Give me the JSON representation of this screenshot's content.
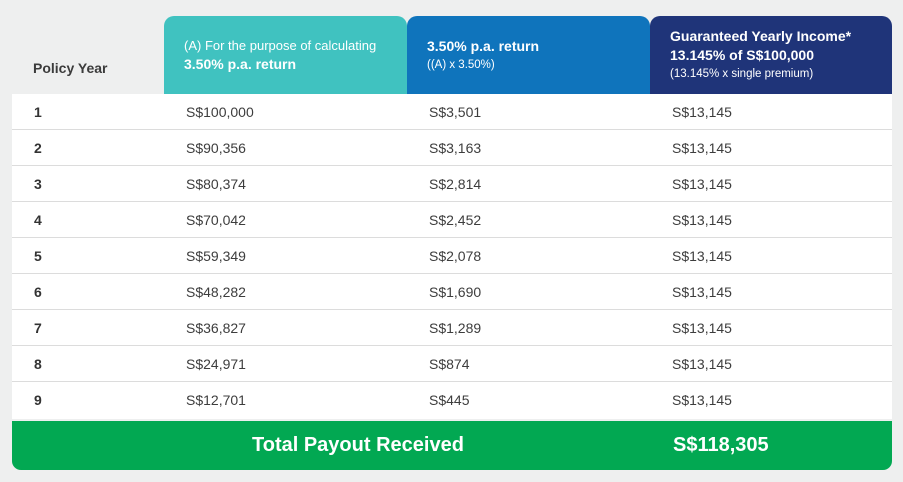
{
  "header": {
    "policy_year_label": "Policy Year",
    "col_a": {
      "line1": "(A) For the purpose of calculating",
      "line2": "3.50% p.a. return"
    },
    "col_b": {
      "line1": "3.50% p.a. return",
      "line2": "((A) x 3.50%)"
    },
    "col_c": {
      "line1": "Guaranteed Yearly Income*",
      "line2": "13.145% of S$100,000",
      "line3": "(13.145% x single premium)"
    }
  },
  "rows": [
    {
      "year": "1",
      "a": "S$100,000",
      "b": "S$3,501",
      "c": "S$13,145"
    },
    {
      "year": "2",
      "a": "S$90,356",
      "b": "S$3,163",
      "c": "S$13,145"
    },
    {
      "year": "3",
      "a": "S$80,374",
      "b": "S$2,814",
      "c": "S$13,145"
    },
    {
      "year": "4",
      "a": "S$70,042",
      "b": "S$2,452",
      "c": "S$13,145"
    },
    {
      "year": "5",
      "a": "S$59,349",
      "b": "S$2,078",
      "c": "S$13,145"
    },
    {
      "year": "6",
      "a": "S$48,282",
      "b": "S$1,690",
      "c": "S$13,145"
    },
    {
      "year": "7",
      "a": "S$36,827",
      "b": "S$1,289",
      "c": "S$13,145"
    },
    {
      "year": "8",
      "a": "S$24,971",
      "b": "S$874",
      "c": "S$13,145"
    },
    {
      "year": "9",
      "a": "S$12,701",
      "b": "S$445",
      "c": "S$13,145"
    }
  ],
  "total": {
    "label": "Total Payout Received",
    "value": "S$118,305"
  },
  "colors": {
    "col_a": "#40c2c0",
    "col_b": "#0f74bc",
    "col_c": "#1f3479",
    "total": "#02a852",
    "page_background": "#eeefef"
  }
}
